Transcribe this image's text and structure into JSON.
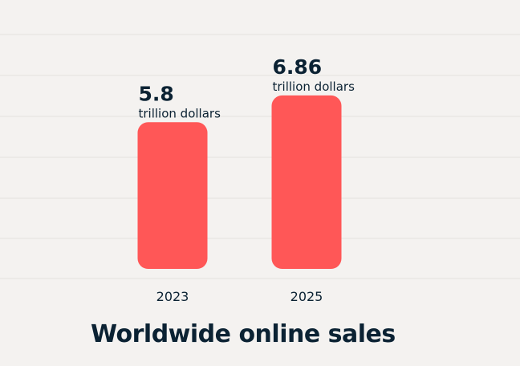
{
  "chart_data": {
    "type": "bar",
    "title": "Worldwide online sales",
    "xlabel": "",
    "ylabel": "",
    "categories": [
      "2023",
      "2025"
    ],
    "values": [
      5.8,
      6.86
    ],
    "value_labels": [
      "5.8",
      "6.86"
    ],
    "unit_label": "trillion dollars",
    "ylim": [
      0,
      8
    ],
    "grid": true,
    "bar_color": "#ff5757",
    "text_color": "#0b2233"
  }
}
